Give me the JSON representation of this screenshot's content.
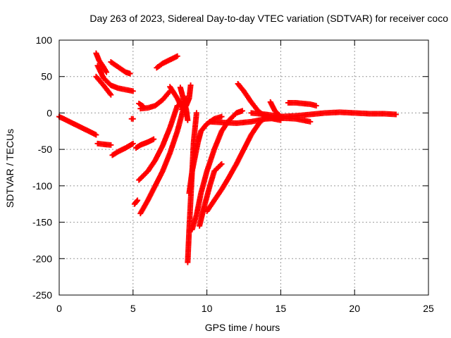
{
  "chart_data": {
    "type": "scatter",
    "title": "Day 263 of 2023, Sidereal Day-to-day VTEC variation (SDTVAR) for receiver coco",
    "xlabel": "GPS time / hours",
    "ylabel": "SDTVAR / TECUs",
    "xlim": [
      0,
      25
    ],
    "ylim": [
      -250,
      100
    ],
    "xticks": [
      0,
      5,
      10,
      15,
      20,
      25
    ],
    "yticks": [
      100,
      50,
      0,
      -50,
      -100,
      -150,
      -200,
      -250
    ],
    "grid": true,
    "legend": "none",
    "marker": "+",
    "color": "#ff0000",
    "series": [
      {
        "x": [
          0,
          0.5,
          1.0,
          1.5,
          2.0,
          2.5
        ],
        "y": [
          -5,
          -10,
          -15,
          -20,
          -25,
          -30
        ]
      },
      {
        "x": [
          2.6,
          3.0,
          3.5
        ],
        "y": [
          -42,
          -43,
          -44
        ]
      },
      {
        "x": [
          2.5,
          3.0,
          3.5
        ],
        "y": [
          50,
          38,
          25
        ]
      },
      {
        "x": [
          2.5,
          2.7,
          3.0,
          3.2
        ],
        "y": [
          82,
          72,
          63,
          56
        ]
      },
      {
        "x": [
          2.6,
          3.0,
          3.5,
          4.0,
          4.5,
          5.0
        ],
        "y": [
          65,
          48,
          38,
          34,
          32,
          30
        ]
      },
      {
        "x": [
          3.5,
          4.0,
          4.5,
          4.8
        ],
        "y": [
          70,
          63,
          56,
          54
        ]
      },
      {
        "x": [
          3.6,
          4.0,
          4.5,
          5.0
        ],
        "y": [
          -58,
          -53,
          -48,
          -42
        ]
      },
      {
        "x": [
          4.9,
          5.0
        ],
        "y": [
          -8,
          -8
        ]
      },
      {
        "x": [
          5.2,
          5.5,
          6.0,
          6.4
        ],
        "y": [
          -48,
          -44,
          -40,
          -36
        ]
      },
      {
        "x": [
          5.1,
          5.3
        ],
        "y": [
          -125,
          -120
        ]
      },
      {
        "x": [
          5.4,
          5.7
        ],
        "y": [
          13,
          9
        ]
      },
      {
        "x": [
          5.5,
          6.0,
          6.5,
          7.0,
          7.5
        ],
        "y": [
          6,
          7,
          10,
          18,
          30
        ]
      },
      {
        "x": [
          6.6,
          7.0,
          7.5,
          8.0
        ],
        "y": [
          62,
          68,
          73,
          78
        ]
      },
      {
        "x": [
          5.4,
          6.0,
          6.5,
          7.0,
          7.5,
          8.0
        ],
        "y": [
          -92,
          -80,
          -65,
          -45,
          -20,
          10
        ]
      },
      {
        "x": [
          5.5,
          6.0,
          6.5,
          7.0,
          7.5,
          8.0,
          8.6
        ],
        "y": [
          -138,
          -120,
          -100,
          -80,
          -55,
          -25,
          20
        ]
      },
      {
        "x": [
          7.5,
          8.0,
          8.3,
          8.6
        ],
        "y": [
          36,
          20,
          8,
          0
        ]
      },
      {
        "x": [
          8.2,
          8.4,
          8.6,
          8.7
        ],
        "y": [
          35,
          20,
          5,
          -10
        ]
      },
      {
        "x": [
          8.3,
          8.6,
          8.8,
          8.9
        ],
        "y": [
          5,
          10,
          20,
          38
        ]
      },
      {
        "x": [
          8.7,
          8.8,
          8.9,
          9.0,
          9.1,
          9.3
        ],
        "y": [
          -205,
          -160,
          -120,
          -80,
          -40,
          0
        ]
      },
      {
        "x": [
          8.8,
          9.0,
          9.2,
          9.4,
          9.6,
          10.0,
          10.5,
          11.0
        ],
        "y": [
          -110,
          -80,
          -60,
          -40,
          -25,
          -15,
          -8,
          -5
        ]
      },
      {
        "x": [
          9.0,
          9.3,
          9.6,
          10.0,
          10.5,
          11.0,
          11.5,
          12.0,
          12.4
        ],
        "y": [
          -160,
          -140,
          -110,
          -80,
          -50,
          -25,
          -10,
          0,
          3
        ]
      },
      {
        "x": [
          9.5,
          9.8,
          10.2,
          10.5,
          11.0
        ],
        "y": [
          -155,
          -130,
          -100,
          -80,
          -70
        ]
      },
      {
        "x": [
          10.0,
          10.5,
          11.0,
          11.5,
          12.0,
          12.5,
          13.0,
          13.5,
          14.0
        ],
        "y": [
          -135,
          -120,
          -105,
          -88,
          -70,
          -50,
          -30,
          -15,
          -5
        ]
      },
      {
        "x": [
          10.2,
          11.0,
          12.0,
          13.0,
          14.0,
          15.0,
          16.0,
          17.0
        ],
        "y": [
          -12,
          -13,
          -14,
          -12,
          -8,
          -7,
          -8,
          -12
        ]
      },
      {
        "x": [
          12.1,
          12.5,
          13.0,
          13.5,
          14.0,
          14.5,
          15.0
        ],
        "y": [
          40,
          30,
          15,
          2,
          -5,
          -8,
          -10
        ]
      },
      {
        "x": [
          13.0,
          14.0,
          15.0,
          16.0,
          17.0,
          18.0,
          19.0,
          20.0,
          21.0,
          22.0,
          22.8
        ],
        "y": [
          0,
          -2,
          -5,
          -4,
          -2,
          0,
          1,
          0,
          -1,
          -1,
          -2
        ]
      },
      {
        "x": [
          14.3,
          14.6,
          15.0
        ],
        "y": [
          15,
          3,
          -5
        ]
      },
      {
        "x": [
          15.5,
          16.0,
          16.5,
          17.0,
          17.4
        ],
        "y": [
          14,
          14,
          13,
          12,
          10
        ]
      }
    ]
  }
}
